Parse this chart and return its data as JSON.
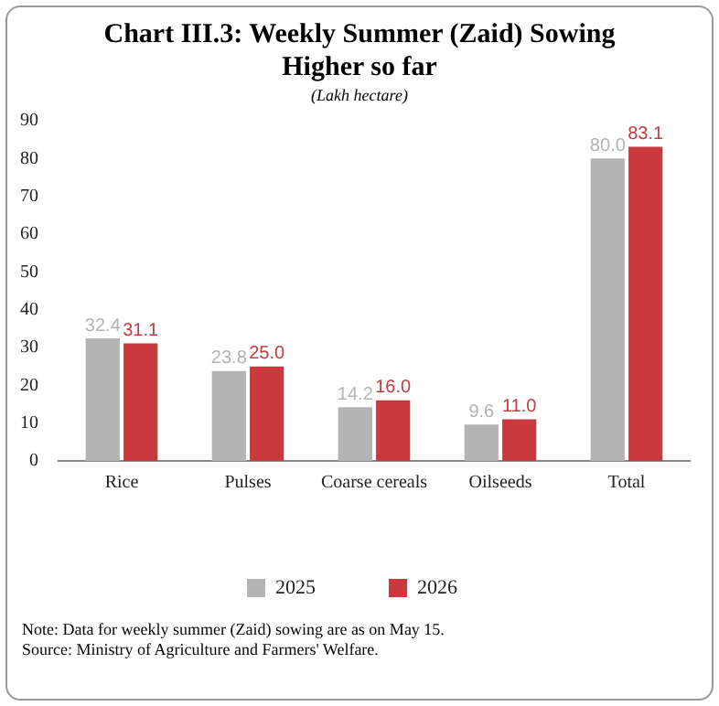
{
  "chart_data": {
    "type": "bar",
    "title": "Chart III.3: Weekly Summer (Zaid) Sowing Higher so far",
    "subtitle": "(Lakh hectare)",
    "categories": [
      "Rice",
      "Pulses",
      "Coarse cereals",
      "Oilseeds",
      "Total"
    ],
    "series": [
      {
        "name": "2025",
        "color": "#b4b4b4",
        "values": [
          32.4,
          23.8,
          14.2,
          9.6,
          80.0
        ],
        "value_labels": [
          "32.4",
          "23.8",
          "14.2",
          "9.6",
          "80.0"
        ]
      },
      {
        "name": "2026",
        "color": "#c9393e",
        "values": [
          31.1,
          25.0,
          16.0,
          11.0,
          83.1
        ],
        "value_labels": [
          "31.1",
          "25.0",
          "16.0",
          "11.0",
          "83.1"
        ]
      }
    ],
    "ylim": [
      0,
      90
    ],
    "yticks": [
      0,
      10,
      20,
      30,
      40,
      50,
      60,
      70,
      80,
      90
    ],
    "grid": false,
    "legend": "bottom",
    "annotations": [
      "Note: Data for weekly summer (Zaid) sowing are as on May 15.",
      "Source: Ministry of Agriculture and Farmers' Welfare."
    ]
  }
}
